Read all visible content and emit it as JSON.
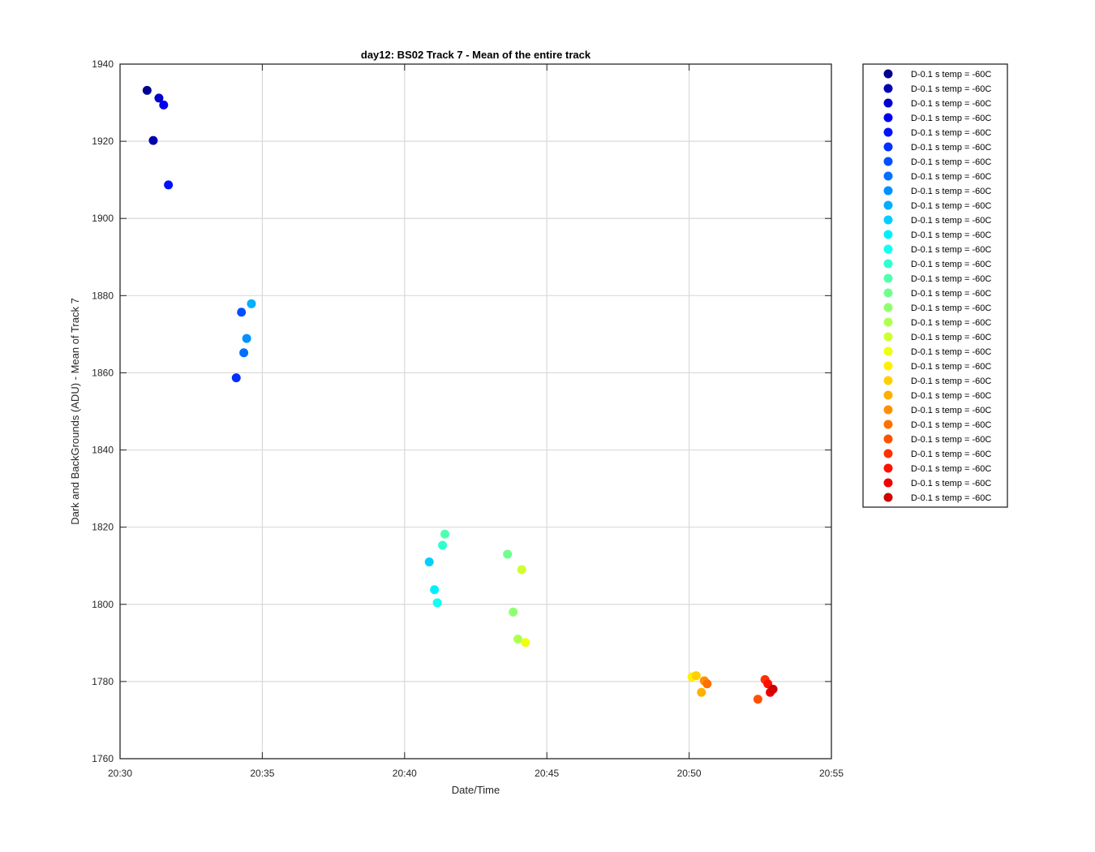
{
  "chart_data": {
    "type": "scatter",
    "title": "day12: BS02  Track 7 - Mean of the entire track",
    "xlabel": "Date/Time",
    "ylabel": "Dark and BackGrounds (ADU) - Mean of Track 7",
    "xlim": [
      "20:30",
      "20:55"
    ],
    "ylim": [
      1760,
      1940
    ],
    "xticks": [
      "20:30",
      "20:35",
      "20:40",
      "20:45",
      "20:50",
      "20:55"
    ],
    "yticks": [
      1760,
      1780,
      1800,
      1820,
      1840,
      1860,
      1880,
      1900,
      1920,
      1940
    ],
    "grid": true,
    "legend_position": "outside-right-top",
    "series": [
      {
        "name": "D-0.1 s temp = -60C",
        "color": "#00008f",
        "x": [
          "20:30:57"
        ],
        "y": [
          1933.2
        ]
      },
      {
        "name": "D-0.1 s temp = -60C",
        "color": "#0000af",
        "x": [
          "20:31:10"
        ],
        "y": [
          1920.2
        ]
      },
      {
        "name": "D-0.1 s temp = -60C",
        "color": "#0000cf",
        "x": [
          "20:31:22"
        ],
        "y": [
          1931.2
        ]
      },
      {
        "name": "D-0.1 s temp = -60C",
        "color": "#0000ef",
        "x": [
          "20:31:32"
        ],
        "y": [
          1929.4
        ]
      },
      {
        "name": "D-0.1 s temp = -60C",
        "color": "#0010ff",
        "x": [
          "20:31:42"
        ],
        "y": [
          1908.7
        ]
      },
      {
        "name": "D-0.1 s temp = -60C",
        "color": "#0030ff",
        "x": [
          "20:34:05"
        ],
        "y": [
          1858.7
        ]
      },
      {
        "name": "D-0.1 s temp = -60C",
        "color": "#0050ff",
        "x": [
          "20:34:16"
        ],
        "y": [
          1875.7
        ]
      },
      {
        "name": "D-0.1 s temp = -60C",
        "color": "#0070ff",
        "x": [
          "20:34:21"
        ],
        "y": [
          1865.2
        ]
      },
      {
        "name": "D-0.1 s temp = -60C",
        "color": "#0090ff",
        "x": [
          "20:34:27"
        ],
        "y": [
          1868.9
        ]
      },
      {
        "name": "D-0.1 s temp = -60C",
        "color": "#00afff",
        "x": [
          "20:34:37"
        ],
        "y": [
          1877.9
        ]
      },
      {
        "name": "D-0.1 s temp = -60C",
        "color": "#00cfff",
        "x": [
          "20:40:52"
        ],
        "y": [
          1811.0
        ]
      },
      {
        "name": "D-0.1 s temp = -60C",
        "color": "#00efff",
        "x": [
          "20:41:03"
        ],
        "y": [
          1803.8
        ]
      },
      {
        "name": "D-0.1 s temp = -60C",
        "color": "#10ffef",
        "x": [
          "20:41:09"
        ],
        "y": [
          1800.4
        ]
      },
      {
        "name": "D-0.1 s temp = -60C",
        "color": "#30ffcf",
        "x": [
          "20:41:20"
        ],
        "y": [
          1815.3
        ]
      },
      {
        "name": "D-0.1 s temp = -60C",
        "color": "#50ffaf",
        "x": [
          "20:41:25"
        ],
        "y": [
          1818.2
        ]
      },
      {
        "name": "D-0.1 s temp = -60C",
        "color": "#70ff8f",
        "x": [
          "20:43:37"
        ],
        "y": [
          1813.0
        ]
      },
      {
        "name": "D-0.1 s temp = -60C",
        "color": "#8fff70",
        "x": [
          "20:43:49"
        ],
        "y": [
          1798.0
        ]
      },
      {
        "name": "D-0.1 s temp = -60C",
        "color": "#afff50",
        "x": [
          "20:43:59"
        ],
        "y": [
          1791.0
        ]
      },
      {
        "name": "D-0.1 s temp = -60C",
        "color": "#cfff30",
        "x": [
          "20:44:07"
        ],
        "y": [
          1809.0
        ]
      },
      {
        "name": "D-0.1 s temp = -60C",
        "color": "#efff10",
        "x": [
          "20:44:15"
        ],
        "y": [
          1790.1
        ]
      },
      {
        "name": "D-0.1 s temp = -60C",
        "color": "#ffef00",
        "x": [
          "20:50:06"
        ],
        "y": [
          1781.2
        ]
      },
      {
        "name": "D-0.1 s temp = -60C",
        "color": "#ffcf00",
        "x": [
          "20:50:15"
        ],
        "y": [
          1781.5
        ]
      },
      {
        "name": "D-0.1 s temp = -60C",
        "color": "#ffaf00",
        "x": [
          "20:50:26"
        ],
        "y": [
          1777.2
        ]
      },
      {
        "name": "D-0.1 s temp = -60C",
        "color": "#ff8f00",
        "x": [
          "20:50:32"
        ],
        "y": [
          1780.2
        ]
      },
      {
        "name": "D-0.1 s temp = -60C",
        "color": "#ff7000",
        "x": [
          "20:50:38"
        ],
        "y": [
          1779.4
        ]
      },
      {
        "name": "D-0.1 s temp = -60C",
        "color": "#ff5000",
        "x": [
          "20:52:25"
        ],
        "y": [
          1775.4
        ]
      },
      {
        "name": "D-0.1 s temp = -60C",
        "color": "#ff3000",
        "x": [
          "20:52:40"
        ],
        "y": [
          1780.5
        ]
      },
      {
        "name": "D-0.1 s temp = -60C",
        "color": "#ff1000",
        "x": [
          "20:52:46"
        ],
        "y": [
          1779.4
        ]
      },
      {
        "name": "D-0.1 s temp = -60C",
        "color": "#ef0000",
        "x": [
          "20:52:51"
        ],
        "y": [
          1777.2
        ]
      },
      {
        "name": "D-0.1 s temp = -60C",
        "color": "#cf0000",
        "x": [
          "20:52:57"
        ],
        "y": [
          1778.0
        ]
      }
    ]
  }
}
